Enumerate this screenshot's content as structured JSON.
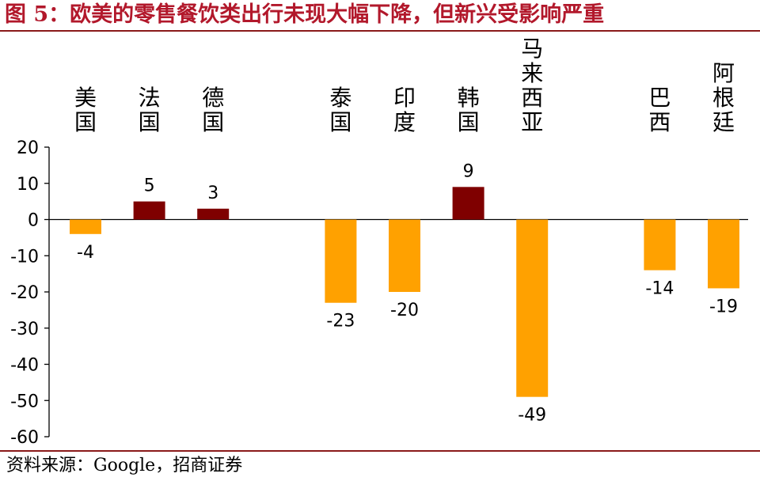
{
  "title": "图 5：欧美的零售餐饮类出行未现大幅下降，但新兴受影响严重",
  "source": "资料来源：Google，招商证券",
  "chart_data": {
    "type": "bar",
    "title": "图 5：欧美的零售餐饮类出行未现大幅下降，但新兴受影响严重",
    "xlabel": "",
    "ylabel": "",
    "ylim": [
      -60,
      20
    ],
    "yticks": [
      20,
      10,
      0,
      -10,
      -20,
      -30,
      -40,
      -50,
      -60
    ],
    "grid": false,
    "categories": [
      "美国",
      "法国",
      "德国",
      "泰国",
      "印度",
      "韩国",
      "马来西亚",
      "巴西",
      "阿根廷"
    ],
    "slots": [
      0,
      1,
      2,
      4,
      5,
      6,
      7,
      9,
      10
    ],
    "values": [
      -4,
      5,
      3,
      -23,
      -20,
      9,
      -49,
      -14,
      -19
    ],
    "colors": {
      "positive": "#7f0000",
      "negative": "#ffa100"
    }
  }
}
